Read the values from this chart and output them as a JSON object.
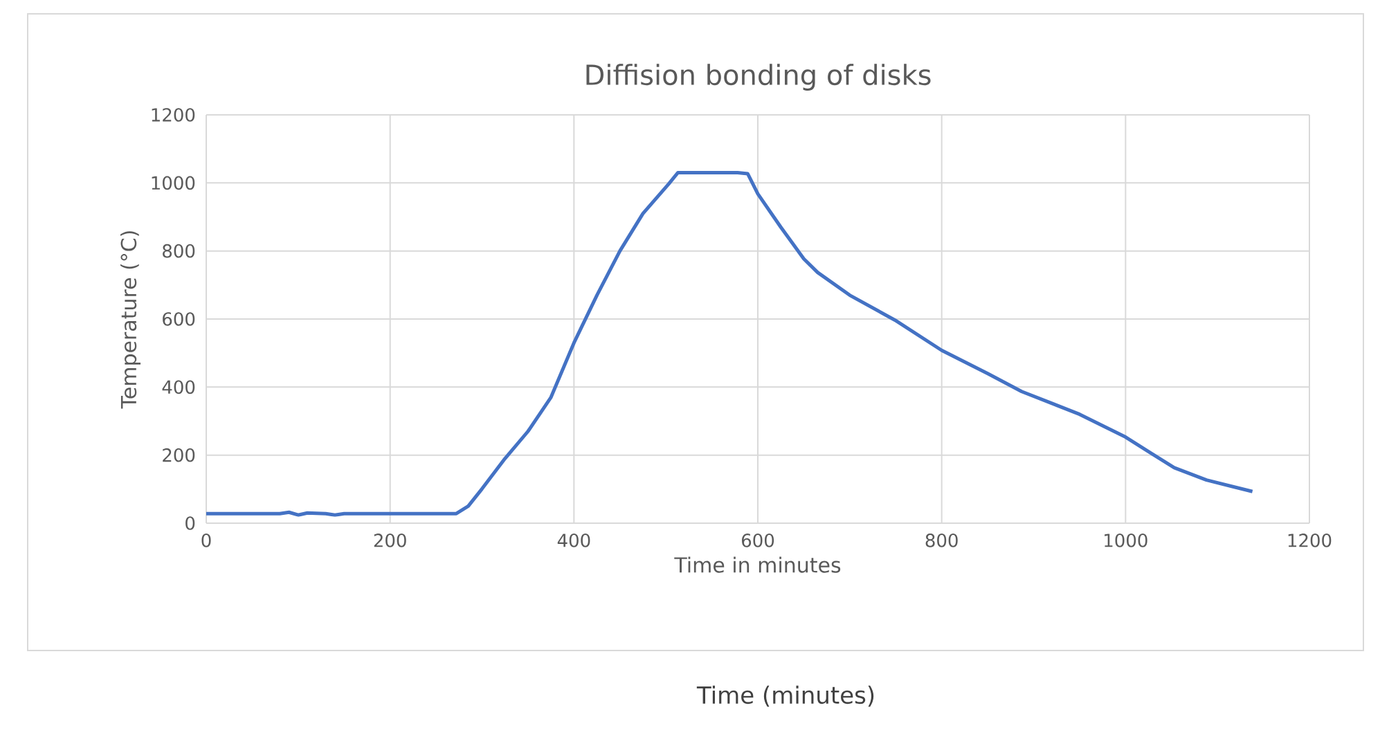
{
  "chart_data": {
    "type": "line",
    "title": "Diffision bonding of disks",
    "xlabel": "Time in minutes",
    "ylabel": "Temperature (°C)",
    "annotations": [
      "Time (minutes)"
    ],
    "series": [
      {
        "color": "#4472c4",
        "x": [
          0,
          80,
          90,
          100,
          110,
          130,
          140,
          150,
          200,
          250,
          272,
          285,
          300,
          325,
          350,
          375,
          400,
          425,
          450,
          475,
          503,
          513,
          540,
          578,
          589,
          600,
          625,
          650,
          665,
          700,
          749,
          800,
          850,
          887,
          950,
          1000,
          1028,
          1053,
          1088,
          1138
        ],
        "values": [
          28,
          28,
          32,
          24,
          30,
          28,
          24,
          28,
          28,
          28,
          28,
          50,
          101,
          190,
          270,
          370,
          530,
          670,
          800,
          910,
          997,
          1030,
          1030,
          1030,
          1027,
          968,
          870,
          777,
          737,
          670,
          597,
          508,
          440,
          387,
          320,
          253,
          205,
          163,
          127,
          93
        ]
      }
    ],
    "xlim": [
      0,
      1200
    ],
    "ylim": [
      0,
      1200
    ],
    "xticks": [
      0,
      200,
      400,
      600,
      800,
      1000,
      1200
    ],
    "yticks": [
      0,
      200,
      400,
      600,
      800,
      1000,
      1200
    ],
    "grid": true,
    "line_style": "solid",
    "marker": "none"
  }
}
